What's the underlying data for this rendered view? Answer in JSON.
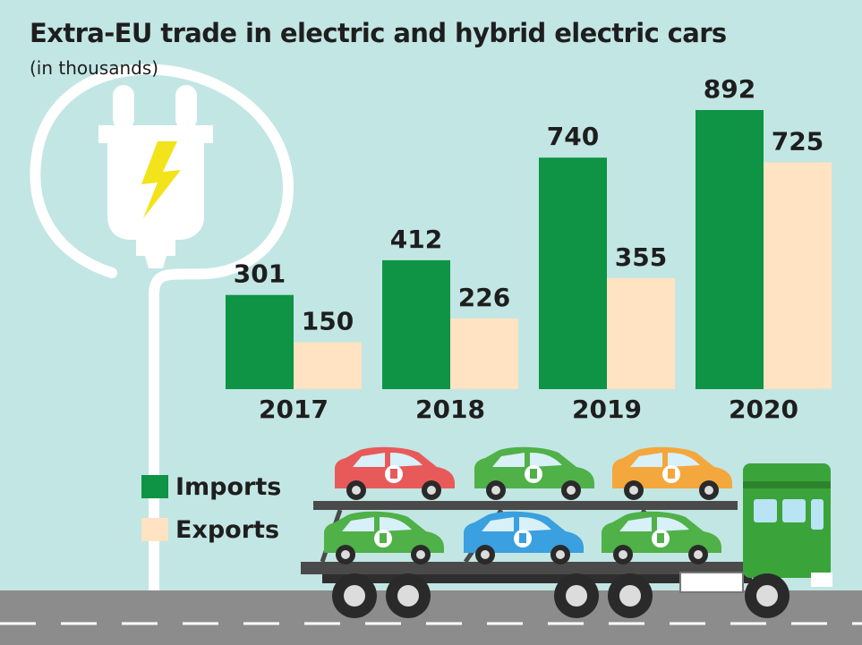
{
  "title": "Extra-EU trade in electric and hybrid electric cars",
  "subtitle": "(in thousands)",
  "colors": {
    "background": "#c2e6e4",
    "imports": "#0e9444",
    "exports": "#ffe3c2",
    "road": "#8c8c8c",
    "plug": "#ffffff",
    "bolt": "#f2e31a",
    "truck_cab": "#3aa43a"
  },
  "legend": {
    "imports_label": "Imports",
    "exports_label": "Exports"
  },
  "illustration": {
    "plug_icon": "electric-plug-icon",
    "bolt_icon": "lightning-bolt-icon",
    "truck_icon": "car-transporter-truck-icon",
    "car_colors": [
      "#e85a5a",
      "#4fb148",
      "#f4a73c",
      "#4fb148",
      "#3aa0df",
      "#4fb148"
    ]
  },
  "chart_data": {
    "type": "bar",
    "categories": [
      "2017",
      "2018",
      "2019",
      "2020"
    ],
    "series": [
      {
        "name": "Imports",
        "values": [
          301,
          412,
          740,
          892
        ]
      },
      {
        "name": "Exports",
        "values": [
          150,
          226,
          355,
          725
        ]
      }
    ],
    "xlabel": "",
    "ylabel": "",
    "ylim": [
      0,
      892
    ],
    "grid": false,
    "legend": "bottom-left"
  }
}
